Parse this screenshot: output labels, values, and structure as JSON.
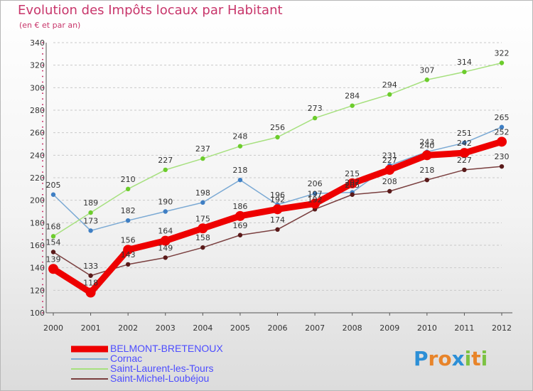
{
  "header": {
    "title": "Evolution des Impôts locaux par Habitant",
    "subtitle": "(en € et par an)"
  },
  "chart_data": {
    "type": "line",
    "title": "Evolution des Impôts locaux par Habitant",
    "subtitle": "(en € et par an)",
    "xlabel": "",
    "ylabel": "",
    "ylim": [
      100,
      340
    ],
    "yticks": [
      100,
      120,
      140,
      160,
      180,
      200,
      220,
      240,
      260,
      280,
      300,
      320,
      340
    ],
    "grid": "horizontal dashed",
    "legend_position": "bottom-left",
    "x": [
      "2000",
      "2001",
      "2002",
      "2003",
      "2004",
      "2005",
      "2006",
      "2007",
      "2008",
      "2009",
      "2010",
      "2011",
      "2012"
    ],
    "series": [
      {
        "name": "BELMONT-BRETENOUX",
        "values": [
          139,
          118,
          156,
          164,
          175,
          186,
          192,
          197,
          215,
          227,
          240,
          242,
          252
        ],
        "color": "#ee0000",
        "marker_color": "#ee0000",
        "emphasis": true
      },
      {
        "name": "Cornac",
        "values": [
          205,
          173,
          182,
          190,
          198,
          218,
          196,
          206,
          207,
          231,
          243,
          251,
          265
        ],
        "color": "#7aa9d4",
        "marker_color": "#3f7fc4"
      },
      {
        "name": "Saint-Laurent-les-Tours",
        "values": [
          168,
          189,
          210,
          227,
          237,
          248,
          256,
          273,
          284,
          294,
          307,
          314,
          322
        ],
        "color": "#a6e07e",
        "marker_color": "#6ccc2c"
      },
      {
        "name": "Saint-Michel-Loubéjou",
        "values": [
          154,
          133,
          143,
          149,
          158,
          169,
          174,
          192,
          205,
          208,
          218,
          227,
          230
        ],
        "color": "#7a3f3f",
        "marker_color": "#5a1a1a"
      }
    ]
  },
  "branding": {
    "logo_letters": [
      "P",
      "r",
      "o",
      "x",
      "i",
      "t",
      "i"
    ],
    "logo_colors": [
      "#2c8fd6",
      "#e8842a",
      "#e8842a",
      "#2c8fd6",
      "#7cc243",
      "#e8842a",
      "#7cc243"
    ]
  },
  "colors": {
    "title": "#c8366b",
    "axis": "#555555",
    "grid": "#c9c9c9",
    "tick_mark": "#c8366b",
    "legend_text": "#4d4dff"
  }
}
